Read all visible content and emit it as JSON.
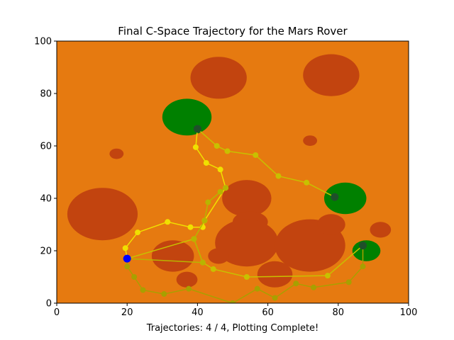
{
  "chart_data": {
    "type": "scatter",
    "title": "Final C-Space Trajectory for the Mars Rover",
    "xlabel": "Trajectories: 4 / 4, Plotting Complete!",
    "ylabel": "",
    "xlim": [
      0,
      100
    ],
    "ylim": [
      0,
      100
    ],
    "x_ticks": [
      "0",
      "20",
      "40",
      "60",
      "80",
      "100"
    ],
    "y_ticks": [
      "0",
      "20",
      "40",
      "60",
      "80",
      "100"
    ],
    "grid": false,
    "background_color": "#e67a10",
    "obstacle_color": "#c2440f",
    "goal_color": "#008000",
    "start_color": "#0000ff",
    "obstacles": [
      {
        "cx": 46,
        "cy": 86,
        "rx": 8,
        "ry": 8
      },
      {
        "cx": 78,
        "cy": 87,
        "rx": 8,
        "ry": 8
      },
      {
        "cx": 13,
        "cy": 34,
        "rx": 10,
        "ry": 10
      },
      {
        "cx": 54,
        "cy": 40,
        "rx": 7,
        "ry": 7
      },
      {
        "cx": 55,
        "cy": 31,
        "rx": 5,
        "ry": 4
      },
      {
        "cx": 54,
        "cy": 23,
        "rx": 9,
        "ry": 9
      },
      {
        "cx": 72,
        "cy": 22,
        "rx": 10,
        "ry": 10
      },
      {
        "cx": 78,
        "cy": 30,
        "rx": 4,
        "ry": 4
      },
      {
        "cx": 33,
        "cy": 18,
        "rx": 6,
        "ry": 6
      },
      {
        "cx": 62,
        "cy": 11,
        "rx": 5,
        "ry": 5
      },
      {
        "cx": 37,
        "cy": 9,
        "rx": 3,
        "ry": 3
      },
      {
        "cx": 92,
        "cy": 28,
        "rx": 3,
        "ry": 3
      },
      {
        "cx": 17,
        "cy": 57,
        "rx": 2,
        "ry": 2
      },
      {
        "cx": 72,
        "cy": 62,
        "rx": 2,
        "ry": 2
      },
      {
        "cx": 46,
        "cy": 18,
        "rx": 3,
        "ry": 3
      }
    ],
    "goals": [
      {
        "cx": 37,
        "cy": 71,
        "rx": 7,
        "ry": 7
      },
      {
        "cx": 82,
        "cy": 40,
        "rx": 6,
        "ry": 6
      },
      {
        "cx": 88,
        "cy": 20,
        "rx": 4,
        "ry": 4
      }
    ],
    "start": {
      "x": 20,
      "y": 17
    },
    "goal_markers": [
      {
        "x": 40,
        "y": 66.5
      },
      {
        "x": 79,
        "y": 40.5
      },
      {
        "x": 87,
        "y": 22
      }
    ],
    "series": [
      {
        "color": "#f0e000",
        "points": [
          [
            20,
            17
          ],
          [
            19.5,
            21
          ],
          [
            23,
            27
          ],
          [
            31.5,
            31
          ],
          [
            38,
            29
          ],
          [
            41.5,
            29
          ],
          [
            42,
            31.5
          ],
          [
            48,
            44
          ],
          [
            46.5,
            51
          ],
          [
            42.5,
            53.5
          ],
          [
            39.5,
            59.5
          ],
          [
            40,
            66.5
          ]
        ]
      },
      {
        "color": "#c8c000",
        "points": [
          [
            40,
            66.5
          ],
          [
            45.5,
            60
          ],
          [
            48.5,
            58
          ],
          [
            56.5,
            56.5
          ],
          [
            63,
            48.5
          ],
          [
            71,
            46
          ],
          [
            79,
            40.5
          ]
        ]
      },
      {
        "color": "#c8c000",
        "points": [
          [
            20,
            17
          ],
          [
            39,
            24.5
          ],
          [
            41.5,
            15.5
          ],
          [
            44.5,
            13
          ],
          [
            54,
            10
          ],
          [
            77,
            10.5
          ],
          [
            87,
            22
          ]
        ]
      },
      {
        "color": "#a8a000",
        "points": [
          [
            20,
            17
          ],
          [
            20,
            14
          ],
          [
            22,
            10
          ],
          [
            24.5,
            5
          ],
          [
            30.5,
            3.5
          ],
          [
            37.5,
            5.5
          ],
          [
            50,
            0
          ],
          [
            57,
            5.5
          ],
          [
            62,
            2
          ],
          [
            68,
            7.5
          ],
          [
            73,
            6
          ],
          [
            83,
            8
          ],
          [
            87,
            14
          ],
          [
            87,
            22
          ]
        ]
      },
      {
        "color": "#b8b400",
        "points": [
          [
            20,
            17
          ],
          [
            41.5,
            15.5
          ],
          [
            39,
            24.5
          ],
          [
            42,
            31.5
          ],
          [
            43,
            38.5
          ],
          [
            46.5,
            42.5
          ],
          [
            48,
            44
          ]
        ]
      }
    ]
  }
}
